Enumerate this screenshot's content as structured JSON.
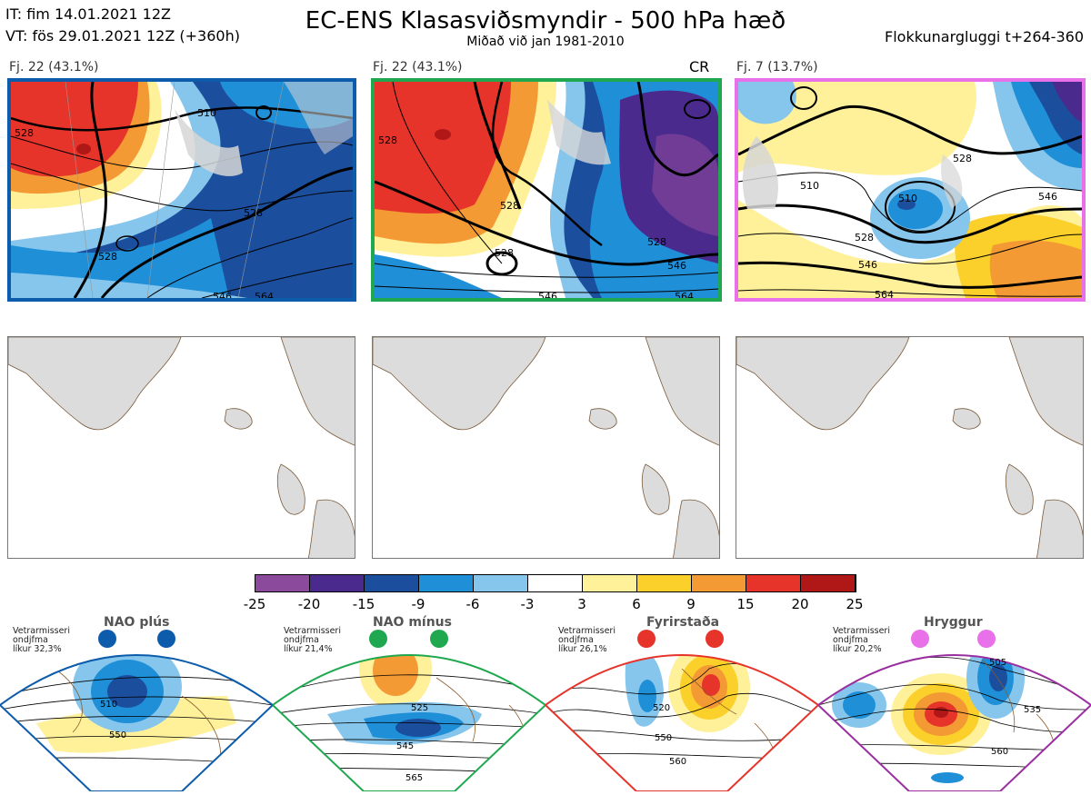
{
  "header": {
    "it_line": "IT: fim 14.01.2021 12Z",
    "vt_line": "VT: fös 29.01.2021 12Z  (+360h)",
    "title": "EC-ENS Klasasviðsmyndir - 500 hPa hæð",
    "subtitle": "Miðað við jan 1981-2010",
    "window": "Flokkunargluggi t+264-360"
  },
  "clusters": [
    {
      "label": "Fj. 22 (43.1%)",
      "tag": "",
      "border_color": "#0d5cab",
      "contours": [
        "510",
        "528",
        "528",
        "528",
        "546",
        "564"
      ]
    },
    {
      "label": "Fj. 22 (43.1%)",
      "tag": "CR",
      "border_color": "#1fa84f",
      "contours": [
        "528",
        "528",
        "528",
        "528",
        "546",
        "546",
        "564"
      ]
    },
    {
      "label": "Fj. 7 (13.7%)",
      "tag": "",
      "border_color": "#e870e8",
      "contours": [
        "528",
        "510",
        "510",
        "528",
        "546",
        "546",
        "564"
      ]
    }
  ],
  "colorbar": {
    "ticks": [
      "-25",
      "-20",
      "-15",
      "-9",
      "-6",
      "-3",
      "3",
      "6",
      "9",
      "15",
      "20",
      "25"
    ],
    "colors": [
      "#8b4a9c",
      "#4a2a8c",
      "#1b4f9e",
      "#1f8fd8",
      "#86c6ec",
      "#ffffff",
      "#fff09a",
      "#fbd02a",
      "#f49a35",
      "#e6342a",
      "#b01818"
    ]
  },
  "regimes": [
    {
      "title": "NAO plús",
      "note": [
        "Vetrarmisseri",
        "ondjfma",
        "líkur 32,3%"
      ],
      "color": "#0d5cab",
      "contours": [
        "510",
        "550"
      ]
    },
    {
      "title": "NAO mínus",
      "note": [
        "Vetrarmisseri",
        "ondjfma",
        "líkur 21,4%"
      ],
      "color": "#1fa84f",
      "contours": [
        "525",
        "545",
        "565"
      ]
    },
    {
      "title": "Fyrirstaða",
      "note": [
        "Vetrarmisseri",
        "ondjfma",
        "líkur 26,1%"
      ],
      "color": "#e6342a",
      "contours": [
        "520",
        "550",
        "560"
      ]
    },
    {
      "title": "Hryggur",
      "note": [
        "Vetrarmisseri",
        "ondjfma",
        "líkur 20,2%"
      ],
      "color": "#9a2fa0",
      "contours": [
        "505",
        "535",
        "560"
      ]
    }
  ]
}
